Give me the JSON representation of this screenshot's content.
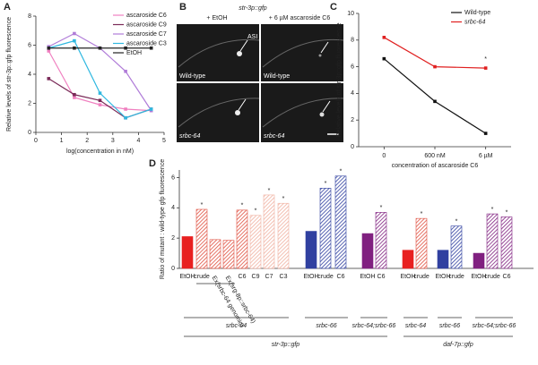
{
  "chart_data": [
    {
      "type": "line",
      "panel": "A",
      "x": [
        0.5,
        1.5,
        2.5,
        3.5,
        4.5
      ],
      "xlabel": "log(concentration in nM)",
      "ylabel": "Relative levels of str-3p::gfp fluorescence",
      "xlim": [
        0,
        5
      ],
      "xticks": [
        0,
        1,
        2,
        3,
        4,
        5
      ],
      "ylim": [
        0,
        8
      ],
      "yticks": [
        0,
        2,
        4,
        6,
        8
      ],
      "series": [
        {
          "name": "ascaroside C6",
          "color": "#f080c0",
          "values": [
            5.6,
            2.4,
            1.9,
            1.6,
            1.5
          ]
        },
        {
          "name": "ascaroside C9",
          "color": "#7a2a58",
          "values": [
            3.7,
            2.6,
            2.2,
            1.0,
            1.6
          ]
        },
        {
          "name": "ascaroside C7",
          "color": "#b07cd8",
          "values": [
            5.9,
            6.8,
            5.8,
            4.2,
            1.5
          ]
        },
        {
          "name": "ascaroside C3",
          "color": "#30b8e0",
          "values": [
            5.8,
            6.3,
            2.7,
            1.0,
            1.6
          ]
        },
        {
          "name": "EtOH",
          "color": "#222222",
          "values": [
            5.8,
            5.8,
            5.8,
            5.8,
            5.8
          ]
        }
      ]
    },
    {
      "type": "line",
      "panel": "C",
      "categories": [
        "0",
        "600 nM",
        "6 µM"
      ],
      "xlabel": "concentration of ascaroside C6",
      "ylabel": "Relative levels of str-3p::gfp fluorescence",
      "ylim": [
        0,
        10
      ],
      "yticks": [
        0,
        2,
        4,
        6,
        8,
        10
      ],
      "series": [
        {
          "name": "Wild-type",
          "color": "#111111",
          "values": [
            6.6,
            3.4,
            1.0
          ]
        },
        {
          "name": "srbc-64",
          "color": "#e02020",
          "values": [
            8.2,
            6.0,
            5.9
          ]
        }
      ],
      "annotations": [
        null,
        null,
        "*"
      ]
    },
    {
      "type": "bar",
      "panel": "D",
      "ylabel": "Ratio of mutant : wild-type gfp fluorescence",
      "ylim": [
        0,
        6.5
      ],
      "yticks": [
        0,
        2,
        4,
        6
      ],
      "categories": [
        "EtOH",
        "crude",
        "Ex(srbc-64 genomic)",
        "Ex(srg-8p::srbc-64)",
        "C6",
        "C9",
        "C7",
        "C3",
        "EtOH",
        "crude",
        "C6",
        "EtOH",
        "C6",
        "EtOH",
        "crude",
        "EtOH",
        "crude",
        "EtOH",
        "crude",
        "C6"
      ],
      "values": [
        2.1,
        3.9,
        1.9,
        1.85,
        3.85,
        3.5,
        4.85,
        4.3,
        2.45,
        5.3,
        6.1,
        2.3,
        3.7,
        1.2,
        3.3,
        1.2,
        2.8,
        1.0,
        3.6,
        3.4
      ],
      "colors": [
        "#e82020",
        "#e05040",
        "#e05040",
        "#e05040",
        "#e05040",
        "#f0b0a0",
        "#f0b0a0",
        "#f0b0a0",
        "#3040a0",
        "#3040a0",
        "#3040a0",
        "#802080",
        "#802080",
        "#e82020",
        "#e05040",
        "#3040a0",
        "#3040a0",
        "#802080",
        "#802080",
        "#802080"
      ],
      "hatched": [
        false,
        true,
        true,
        true,
        true,
        true,
        true,
        true,
        false,
        true,
        true,
        false,
        true,
        false,
        true,
        false,
        true,
        false,
        true,
        true
      ],
      "significance": [
        null,
        "*",
        null,
        null,
        "*",
        "*",
        "*",
        "*",
        null,
        "*",
        "*",
        null,
        "*",
        null,
        "*",
        null,
        "*",
        null,
        "*",
        "*"
      ],
      "genotype_labels": [
        "srbc-64",
        "srbc-66",
        "srbc-64;srbc-66",
        "srbc-64",
        "srbc-66",
        "srbc-64;srbc-66"
      ],
      "reporter_labels": [
        "str-3p::gfp",
        "daf-7p::gfp"
      ]
    }
  ],
  "images": {
    "panel": "B",
    "title": "str-3p::gfp",
    "columns": [
      "+ EtOH",
      "+ 6 µM ascaroside C6"
    ],
    "rows": [
      "Wild-type",
      "srbc-64"
    ],
    "neuron": "ASI"
  }
}
